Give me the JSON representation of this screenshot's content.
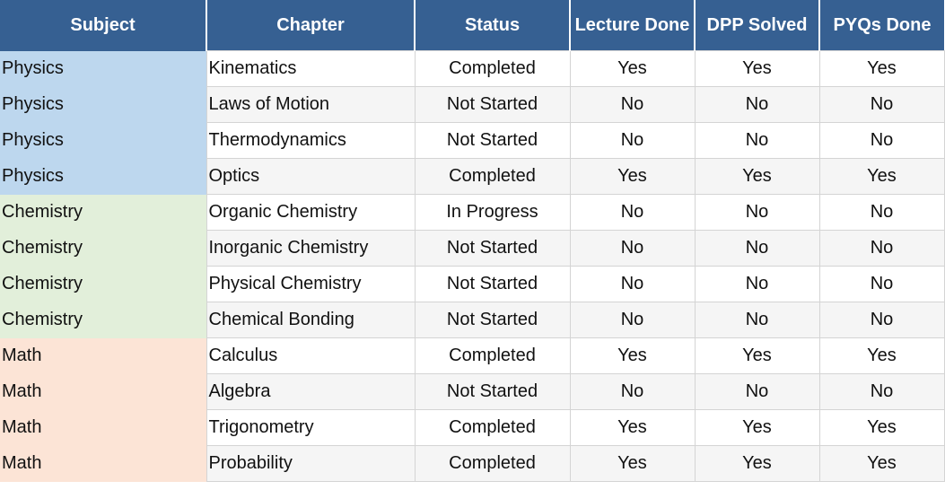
{
  "headers": [
    "Subject",
    "Chapter",
    "Status",
    "Lecture Done",
    "DPP Solved",
    "PYQs Done"
  ],
  "colors": {
    "header_bg": "#366092",
    "physics_bg": "#bdd7ee",
    "chemistry_bg": "#e2efda",
    "math_bg": "#fce4d6"
  },
  "rows": [
    {
      "subject": "Physics",
      "chapter": "Kinematics",
      "status": "Completed",
      "lecture": "Yes",
      "dpp": "Yes",
      "pyq": "Yes"
    },
    {
      "subject": "Physics",
      "chapter": "Laws of Motion",
      "status": "Not Started",
      "lecture": "No",
      "dpp": "No",
      "pyq": "No"
    },
    {
      "subject": "Physics",
      "chapter": "Thermodynamics",
      "status": "Not Started",
      "lecture": "No",
      "dpp": "No",
      "pyq": "No"
    },
    {
      "subject": "Physics",
      "chapter": "Optics",
      "status": "Completed",
      "lecture": "Yes",
      "dpp": "Yes",
      "pyq": "Yes"
    },
    {
      "subject": "Chemistry",
      "chapter": "Organic Chemistry",
      "status": "In Progress",
      "lecture": "No",
      "dpp": "No",
      "pyq": "No"
    },
    {
      "subject": "Chemistry",
      "chapter": "Inorganic Chemistry",
      "status": "Not Started",
      "lecture": "No",
      "dpp": "No",
      "pyq": "No"
    },
    {
      "subject": "Chemistry",
      "chapter": "Physical Chemistry",
      "status": "Not Started",
      "lecture": "No",
      "dpp": "No",
      "pyq": "No"
    },
    {
      "subject": "Chemistry",
      "chapter": "Chemical Bonding",
      "status": "Not Started",
      "lecture": "No",
      "dpp": "No",
      "pyq": "No"
    },
    {
      "subject": "Math",
      "chapter": "Calculus",
      "status": "Completed",
      "lecture": "Yes",
      "dpp": "Yes",
      "pyq": "Yes"
    },
    {
      "subject": "Math",
      "chapter": "Algebra",
      "status": "Not Started",
      "lecture": "No",
      "dpp": "No",
      "pyq": "No"
    },
    {
      "subject": "Math",
      "chapter": "Trigonometry",
      "status": "Completed",
      "lecture": "Yes",
      "dpp": "Yes",
      "pyq": "Yes"
    },
    {
      "subject": "Math",
      "chapter": "Probability",
      "status": "Completed",
      "lecture": "Yes",
      "dpp": "Yes",
      "pyq": "Yes"
    }
  ]
}
